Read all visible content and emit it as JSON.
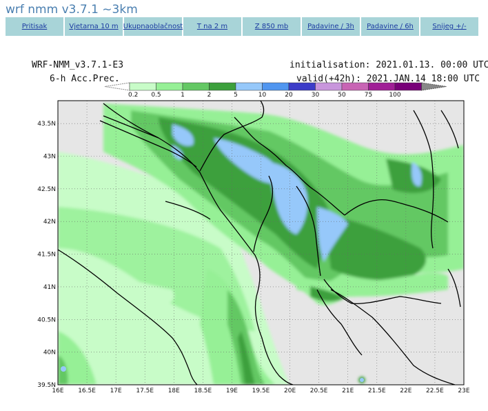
{
  "page": {
    "title": "wrf nmm v3.7.1 ~3km"
  },
  "nav": [
    {
      "label": "Pritisak",
      "lines": [
        "Pritisak"
      ]
    },
    {
      "label": "Vjetar na 10 m",
      "lines": [
        "Vjetar",
        "na 10 m"
      ]
    },
    {
      "label": "Ukupna oblačnost",
      "lines": [
        "Ukupna",
        "oblačnost"
      ]
    },
    {
      "label": "T na 2 m",
      "lines": [
        "T na 2 m"
      ]
    },
    {
      "label": "Z 850 mb",
      "lines": [
        "Z 850 mb"
      ]
    },
    {
      "label": "Padavine / 3h",
      "lines": [
        "Padavine / 3h"
      ]
    },
    {
      "label": "Padavine / 6h",
      "lines": [
        "Padavine / 6h"
      ]
    },
    {
      "label": "Snijeg +/-",
      "lines": [
        "Snijeg +/-"
      ]
    }
  ],
  "map": {
    "model_label": "WRF-NMM_v3.7.1-E3",
    "product_label": "6-h Acc.Prec.",
    "init_text": "initialisation: 2021.01.13.  00:00 UTC",
    "valid_text": "valid(+42h): 2021.JAN.14 18:00 UTC",
    "legend": {
      "bins": [
        {
          "label": "0.2",
          "color": "#c8fcc8"
        },
        {
          "label": "0.5",
          "color": "#96f096"
        },
        {
          "label": "1",
          "color": "#64c864"
        },
        {
          "label": "2",
          "color": "#3ca03c"
        },
        {
          "label": "5",
          "color": "#96c8fa"
        },
        {
          "label": "10",
          "color": "#5096f0"
        },
        {
          "label": "20",
          "color": "#3c3cc8"
        },
        {
          "label": "30",
          "color": "#c896dc"
        },
        {
          "label": "50",
          "color": "#c864b4"
        },
        {
          "label": "75",
          "color": "#a01e96"
        },
        {
          "label": "100",
          "color": "#780078"
        }
      ]
    },
    "lon_ticks": [
      "16E",
      "16.5E",
      "17E",
      "17.5E",
      "18E",
      "18.5E",
      "19E",
      "19.5E",
      "20E",
      "20.5E",
      "21E",
      "21.5E",
      "22E",
      "22.5E",
      "23E"
    ],
    "lat_ticks": [
      "43.5N",
      "43N",
      "42.5N",
      "42N",
      "41.5N",
      "41N",
      "40.5N",
      "40N",
      "39.5N"
    ],
    "extent": {
      "lon": [
        16,
        23
      ],
      "lat": [
        39.5,
        43.85
      ]
    },
    "colors": {
      "background": "#e6e6e6",
      "grid": "#666666",
      "border": "#000000"
    }
  }
}
